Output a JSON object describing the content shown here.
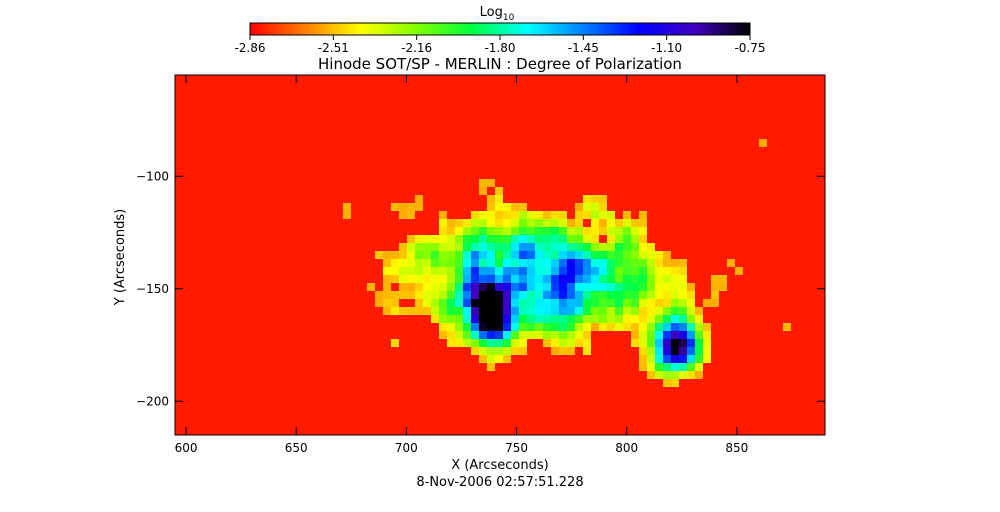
{
  "colorbar": {
    "label": "Log",
    "label_sub": "10",
    "ticks": [
      "-2.86",
      "-2.51",
      "-2.16",
      "-1.80",
      "-1.45",
      "-1.10",
      "-0.75"
    ],
    "range": [
      -2.86,
      -0.75
    ],
    "colormap": [
      "#ff0000",
      "#ff8000",
      "#ffff00",
      "#80ff00",
      "#00ff40",
      "#00ffff",
      "#0080ff",
      "#0000ff",
      "#4000c0",
      "#000000"
    ]
  },
  "chart_data": {
    "type": "heatmap",
    "title": "Hinode SOT/SP - MERLIN : Degree of Polarization",
    "xlabel": "X (Arcseconds)",
    "ylabel": "Y (Arcseconds)",
    "xlim": [
      595,
      890
    ],
    "ylim": [
      -215,
      -55
    ],
    "xticks": [
      600,
      650,
      700,
      750,
      800,
      850
    ],
    "yticks": [
      -100,
      -150,
      -200
    ],
    "background_value": -2.8,
    "features": [
      {
        "kind": "sunspot-umbra",
        "x": 738,
        "y": -162,
        "value": -0.85
      },
      {
        "kind": "sunspot-umbra",
        "x": 823,
        "y": -175,
        "value": -0.8
      },
      {
        "kind": "plage",
        "x": 760,
        "y": -145,
        "value": -1.6
      }
    ],
    "footer": "8-Nov-2006 02:57:51.228"
  }
}
